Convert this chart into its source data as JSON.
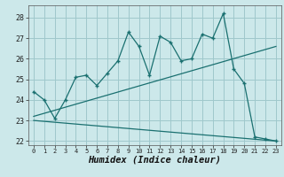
{
  "xlabel": "Humidex (Indice chaleur)",
  "background_color": "#cce8ea",
  "grid_color": "#9fc8cc",
  "line_color": "#1a7070",
  "xlim": [
    -0.5,
    23.5
  ],
  "ylim": [
    21.8,
    28.6
  ],
  "yticks": [
    22,
    23,
    24,
    25,
    26,
    27,
    28
  ],
  "xticks": [
    0,
    1,
    2,
    3,
    4,
    5,
    6,
    7,
    8,
    9,
    10,
    11,
    12,
    13,
    14,
    15,
    16,
    17,
    18,
    19,
    20,
    21,
    22,
    23
  ],
  "main_line_y": [
    24.4,
    24.0,
    23.1,
    24.0,
    25.1,
    25.2,
    24.7,
    25.3,
    25.9,
    27.3,
    26.6,
    25.2,
    27.1,
    26.8,
    25.9,
    26.0,
    27.2,
    27.0,
    28.2,
    25.5,
    24.8,
    22.2,
    22.1,
    22.0
  ],
  "upper_line_x": [
    0,
    23
  ],
  "upper_line_y": [
    23.2,
    26.6
  ],
  "lower_line_x": [
    0,
    23
  ],
  "lower_line_y": [
    23.0,
    22.0
  ]
}
